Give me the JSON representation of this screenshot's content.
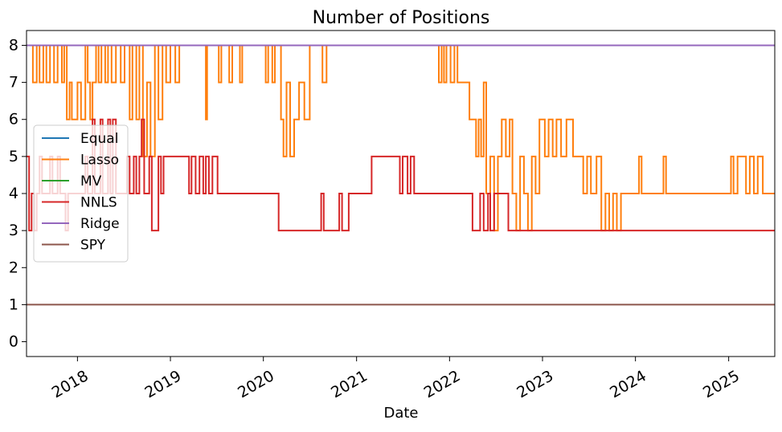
{
  "chart_data": {
    "type": "line",
    "title": "Number of Positions",
    "xlabel": "Date",
    "ylabel": "",
    "ylim": [
      -0.4,
      8.4
    ],
    "xlim": [
      "2017-06-15",
      "2025-07-01"
    ],
    "yticks": [
      0,
      1,
      2,
      3,
      4,
      5,
      6,
      7,
      8
    ],
    "xticks": [
      "2018",
      "2019",
      "2020",
      "2021",
      "2022",
      "2023",
      "2024",
      "2025"
    ],
    "grid": false,
    "legend_position": "center-left",
    "series": [
      {
        "name": "Equal",
        "color": "#1f77b4",
        "points": [
          [
            "2017-06-15",
            8
          ],
          [
            "2025-07-01",
            8
          ]
        ]
      },
      {
        "name": "Lasso",
        "color": "#ff7f0e",
        "points": [
          [
            "2017-06-15",
            8
          ],
          [
            "2017-07-10",
            7
          ],
          [
            "2017-07-25",
            8
          ],
          [
            "2017-08-05",
            7
          ],
          [
            "2017-08-20",
            8
          ],
          [
            "2017-09-01",
            7
          ],
          [
            "2017-09-15",
            8
          ],
          [
            "2017-10-01",
            7
          ],
          [
            "2017-10-15",
            8
          ],
          [
            "2017-11-01",
            7
          ],
          [
            "2017-11-10",
            8
          ],
          [
            "2017-11-20",
            6
          ],
          [
            "2017-12-01",
            7
          ],
          [
            "2017-12-10",
            6
          ],
          [
            "2018-01-01",
            7
          ],
          [
            "2018-01-15",
            6
          ],
          [
            "2018-02-01",
            8
          ],
          [
            "2018-02-10",
            7
          ],
          [
            "2018-02-20",
            6
          ],
          [
            "2018-03-01",
            7
          ],
          [
            "2018-03-15",
            8
          ],
          [
            "2018-03-25",
            7
          ],
          [
            "2018-04-05",
            8
          ],
          [
            "2018-04-20",
            7
          ],
          [
            "2018-05-01",
            8
          ],
          [
            "2018-05-15",
            7
          ],
          [
            "2018-06-01",
            8
          ],
          [
            "2018-06-20",
            7
          ],
          [
            "2018-07-05",
            8
          ],
          [
            "2018-07-25",
            6
          ],
          [
            "2018-08-05",
            8
          ],
          [
            "2018-08-20",
            6
          ],
          [
            "2018-09-01",
            8
          ],
          [
            "2018-09-15",
            5
          ],
          [
            "2018-10-01",
            7
          ],
          [
            "2018-10-15",
            5
          ],
          [
            "2018-11-01",
            8
          ],
          [
            "2018-11-15",
            6
          ],
          [
            "2018-12-01",
            8
          ],
          [
            "2018-12-15",
            7
          ],
          [
            "2019-01-01",
            8
          ],
          [
            "2019-01-20",
            7
          ],
          [
            "2019-02-05",
            8
          ],
          [
            "2019-05-20",
            6
          ],
          [
            "2019-05-25",
            8
          ],
          [
            "2019-07-10",
            7
          ],
          [
            "2019-07-20",
            8
          ],
          [
            "2019-08-20",
            7
          ],
          [
            "2019-09-01",
            8
          ],
          [
            "2019-10-01",
            7
          ],
          [
            "2019-10-10",
            8
          ],
          [
            "2020-01-10",
            7
          ],
          [
            "2020-01-20",
            8
          ],
          [
            "2020-02-05",
            7
          ],
          [
            "2020-02-15",
            8
          ],
          [
            "2020-03-10",
            6
          ],
          [
            "2020-03-20",
            5
          ],
          [
            "2020-04-01",
            7
          ],
          [
            "2020-04-15",
            5
          ],
          [
            "2020-05-01",
            6
          ],
          [
            "2020-05-20",
            7
          ],
          [
            "2020-06-10",
            6
          ],
          [
            "2020-07-01",
            8
          ],
          [
            "2020-08-20",
            7
          ],
          [
            "2020-09-05",
            8
          ],
          [
            "2021-11-20",
            7
          ],
          [
            "2021-12-01",
            8
          ],
          [
            "2021-12-10",
            7
          ],
          [
            "2021-12-20",
            8
          ],
          [
            "2022-01-05",
            7
          ],
          [
            "2022-01-20",
            8
          ],
          [
            "2022-02-01",
            7
          ],
          [
            "2022-03-20",
            6
          ],
          [
            "2022-04-15",
            5
          ],
          [
            "2022-04-25",
            6
          ],
          [
            "2022-05-05",
            5
          ],
          [
            "2022-05-15",
            7
          ],
          [
            "2022-05-25",
            4
          ],
          [
            "2022-06-10",
            5
          ],
          [
            "2022-06-25",
            3
          ],
          [
            "2022-07-10",
            5
          ],
          [
            "2022-07-25",
            6
          ],
          [
            "2022-08-10",
            5
          ],
          [
            "2022-08-25",
            6
          ],
          [
            "2022-09-05",
            4
          ],
          [
            "2022-09-20",
            3
          ],
          [
            "2022-10-05",
            5
          ],
          [
            "2022-10-20",
            4
          ],
          [
            "2022-11-05",
            3
          ],
          [
            "2022-11-20",
            5
          ],
          [
            "2022-12-05",
            4
          ],
          [
            "2022-12-20",
            6
          ],
          [
            "2023-01-10",
            5
          ],
          [
            "2023-01-25",
            6
          ],
          [
            "2023-02-10",
            5
          ],
          [
            "2023-02-25",
            6
          ],
          [
            "2023-03-15",
            5
          ],
          [
            "2023-04-05",
            6
          ],
          [
            "2023-05-01",
            5
          ],
          [
            "2023-06-10",
            4
          ],
          [
            "2023-06-25",
            5
          ],
          [
            "2023-07-10",
            4
          ],
          [
            "2023-08-01",
            5
          ],
          [
            "2023-08-20",
            3
          ],
          [
            "2023-09-05",
            4
          ],
          [
            "2023-09-20",
            3
          ],
          [
            "2023-10-05",
            4
          ],
          [
            "2023-10-20",
            3
          ],
          [
            "2023-11-05",
            4
          ],
          [
            "2024-01-15",
            5
          ],
          [
            "2024-01-25",
            4
          ],
          [
            "2024-04-20",
            5
          ],
          [
            "2024-04-30",
            4
          ],
          [
            "2025-01-10",
            5
          ],
          [
            "2025-01-20",
            4
          ],
          [
            "2025-02-05",
            5
          ],
          [
            "2025-03-10",
            4
          ],
          [
            "2025-03-25",
            5
          ],
          [
            "2025-04-10",
            4
          ],
          [
            "2025-04-25",
            5
          ],
          [
            "2025-05-15",
            4
          ],
          [
            "2025-07-01",
            4
          ]
        ]
      },
      {
        "name": "MV",
        "color": "#2ca02c",
        "points": [
          [
            "2017-06-15",
            8
          ],
          [
            "2025-07-01",
            8
          ]
        ]
      },
      {
        "name": "NNLS",
        "color": "#d62728",
        "points": [
          [
            "2017-06-15",
            5
          ],
          [
            "2017-06-25",
            3
          ],
          [
            "2017-07-05",
            4
          ],
          [
            "2017-07-15",
            3
          ],
          [
            "2017-07-25",
            4
          ],
          [
            "2017-08-05",
            5
          ],
          [
            "2017-08-15",
            4
          ],
          [
            "2017-09-15",
            5
          ],
          [
            "2017-09-25",
            4
          ],
          [
            "2017-10-15",
            5
          ],
          [
            "2017-10-25",
            4
          ],
          [
            "2017-11-15",
            3
          ],
          [
            "2017-11-25",
            4
          ],
          [
            "2018-02-01",
            5
          ],
          [
            "2018-02-10",
            4
          ],
          [
            "2018-03-01",
            6
          ],
          [
            "2018-03-10",
            4
          ],
          [
            "2018-04-01",
            6
          ],
          [
            "2018-04-10",
            4
          ],
          [
            "2018-05-01",
            6
          ],
          [
            "2018-05-10",
            4
          ],
          [
            "2018-05-20",
            6
          ],
          [
            "2018-06-01",
            4
          ],
          [
            "2018-07-15",
            5
          ],
          [
            "2018-07-25",
            4
          ],
          [
            "2018-08-10",
            5
          ],
          [
            "2018-08-20",
            4
          ],
          [
            "2018-09-01",
            5
          ],
          [
            "2018-09-10",
            6
          ],
          [
            "2018-09-20",
            4
          ],
          [
            "2018-10-10",
            5
          ],
          [
            "2018-10-20",
            3
          ],
          [
            "2018-11-15",
            5
          ],
          [
            "2018-11-25",
            4
          ],
          [
            "2018-12-05",
            5
          ],
          [
            "2019-03-15",
            4
          ],
          [
            "2019-03-25",
            5
          ],
          [
            "2019-04-10",
            4
          ],
          [
            "2019-04-25",
            5
          ],
          [
            "2019-05-10",
            4
          ],
          [
            "2019-05-20",
            5
          ],
          [
            "2019-06-01",
            4
          ],
          [
            "2019-06-15",
            5
          ],
          [
            "2019-07-05",
            4
          ],
          [
            "2020-03-01",
            3
          ],
          [
            "2020-08-15",
            4
          ],
          [
            "2020-08-25",
            3
          ],
          [
            "2020-10-25",
            4
          ],
          [
            "2020-11-05",
            3
          ],
          [
            "2020-12-01",
            4
          ],
          [
            "2021-03-01",
            5
          ],
          [
            "2021-06-20",
            4
          ],
          [
            "2021-07-01",
            5
          ],
          [
            "2021-07-20",
            4
          ],
          [
            "2021-08-01",
            5
          ],
          [
            "2021-08-15",
            4
          ],
          [
            "2022-04-01",
            3
          ],
          [
            "2022-05-01",
            4
          ],
          [
            "2022-05-15",
            3
          ],
          [
            "2022-06-01",
            4
          ],
          [
            "2022-06-10",
            3
          ],
          [
            "2022-06-25",
            4
          ],
          [
            "2022-08-20",
            3
          ],
          [
            "2025-07-01",
            3
          ]
        ]
      },
      {
        "name": "Ridge",
        "color": "#9467bd",
        "points": [
          [
            "2017-06-15",
            8
          ],
          [
            "2025-07-01",
            8
          ]
        ]
      },
      {
        "name": "SPY",
        "color": "#8c564b",
        "points": [
          [
            "2017-06-15",
            1
          ],
          [
            "2025-07-01",
            1
          ]
        ]
      }
    ]
  }
}
